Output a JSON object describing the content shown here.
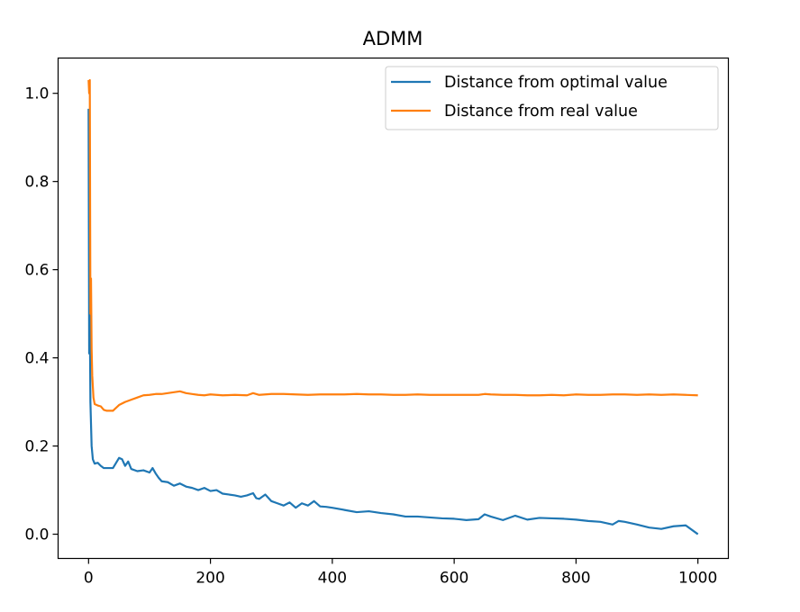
{
  "chart_data": {
    "type": "line",
    "title": "ADMM",
    "xlabel": "",
    "ylabel": "",
    "xlim": [
      -50,
      1050
    ],
    "ylim": [
      -0.055,
      1.08
    ],
    "xticks": [
      0,
      200,
      400,
      600,
      800,
      1000
    ],
    "xtick_labels": [
      "0",
      "200",
      "400",
      "600",
      "800",
      "1000"
    ],
    "yticks": [
      0.0,
      0.2,
      0.4,
      0.6,
      0.8,
      1.0
    ],
    "ytick_labels": [
      "0.0",
      "0.2",
      "0.4",
      "0.6",
      "0.8",
      "1.0"
    ],
    "grid": false,
    "legend_position": "top-right",
    "series": [
      {
        "name": "Distance from optimal value",
        "color": "#1f77b4",
        "x": [
          0,
          1,
          2,
          3,
          5,
          7,
          10,
          15,
          20,
          25,
          30,
          40,
          50,
          55,
          60,
          65,
          70,
          80,
          90,
          100,
          105,
          110,
          115,
          120,
          130,
          140,
          150,
          160,
          170,
          180,
          190,
          200,
          210,
          220,
          230,
          240,
          250,
          260,
          270,
          275,
          280,
          290,
          300,
          310,
          320,
          330,
          340,
          350,
          360,
          370,
          380,
          390,
          400,
          420,
          440,
          460,
          480,
          500,
          520,
          540,
          560,
          580,
          600,
          620,
          640,
          650,
          660,
          680,
          700,
          720,
          740,
          760,
          780,
          800,
          820,
          840,
          860,
          870,
          880,
          900,
          920,
          940,
          960,
          980,
          1000
        ],
        "y": [
          0.965,
          0.41,
          0.5,
          0.3,
          0.2,
          0.17,
          0.16,
          0.162,
          0.155,
          0.15,
          0.15,
          0.15,
          0.173,
          0.17,
          0.155,
          0.165,
          0.148,
          0.143,
          0.145,
          0.14,
          0.15,
          0.138,
          0.128,
          0.12,
          0.118,
          0.11,
          0.115,
          0.108,
          0.105,
          0.1,
          0.105,
          0.098,
          0.1,
          0.092,
          0.09,
          0.088,
          0.085,
          0.088,
          0.093,
          0.082,
          0.08,
          0.09,
          0.075,
          0.07,
          0.065,
          0.072,
          0.06,
          0.07,
          0.065,
          0.075,
          0.063,
          0.062,
          0.06,
          0.055,
          0.05,
          0.052,
          0.048,
          0.045,
          0.04,
          0.04,
          0.038,
          0.036,
          0.035,
          0.032,
          0.034,
          0.045,
          0.04,
          0.032,
          0.042,
          0.033,
          0.037,
          0.036,
          0.035,
          0.033,
          0.03,
          0.028,
          0.022,
          0.03,
          0.028,
          0.022,
          0.015,
          0.012,
          0.018,
          0.02,
          0.0
        ]
      },
      {
        "name": "Distance from real value",
        "color": "#ff7f0e",
        "x": [
          0,
          1,
          2,
          3,
          4,
          5,
          6,
          8,
          10,
          15,
          20,
          25,
          30,
          40,
          50,
          60,
          70,
          80,
          90,
          100,
          110,
          120,
          130,
          140,
          150,
          160,
          170,
          180,
          190,
          200,
          220,
          240,
          260,
          270,
          280,
          300,
          320,
          340,
          360,
          380,
          400,
          420,
          440,
          460,
          480,
          500,
          520,
          540,
          560,
          580,
          600,
          620,
          640,
          650,
          660,
          680,
          700,
          720,
          740,
          760,
          780,
          800,
          820,
          840,
          860,
          880,
          900,
          920,
          940,
          960,
          980,
          1000
        ],
        "y": [
          1.03,
          1.0,
          1.03,
          0.5,
          0.58,
          0.42,
          0.36,
          0.31,
          0.295,
          0.292,
          0.29,
          0.282,
          0.28,
          0.28,
          0.293,
          0.3,
          0.305,
          0.31,
          0.315,
          0.316,
          0.318,
          0.318,
          0.32,
          0.322,
          0.324,
          0.32,
          0.318,
          0.316,
          0.315,
          0.317,
          0.315,
          0.316,
          0.315,
          0.32,
          0.316,
          0.318,
          0.318,
          0.317,
          0.316,
          0.317,
          0.317,
          0.317,
          0.318,
          0.317,
          0.317,
          0.316,
          0.316,
          0.317,
          0.316,
          0.316,
          0.316,
          0.316,
          0.316,
          0.318,
          0.317,
          0.316,
          0.316,
          0.315,
          0.315,
          0.316,
          0.315,
          0.317,
          0.316,
          0.316,
          0.317,
          0.317,
          0.316,
          0.317,
          0.316,
          0.317,
          0.316,
          0.315
        ]
      }
    ]
  }
}
